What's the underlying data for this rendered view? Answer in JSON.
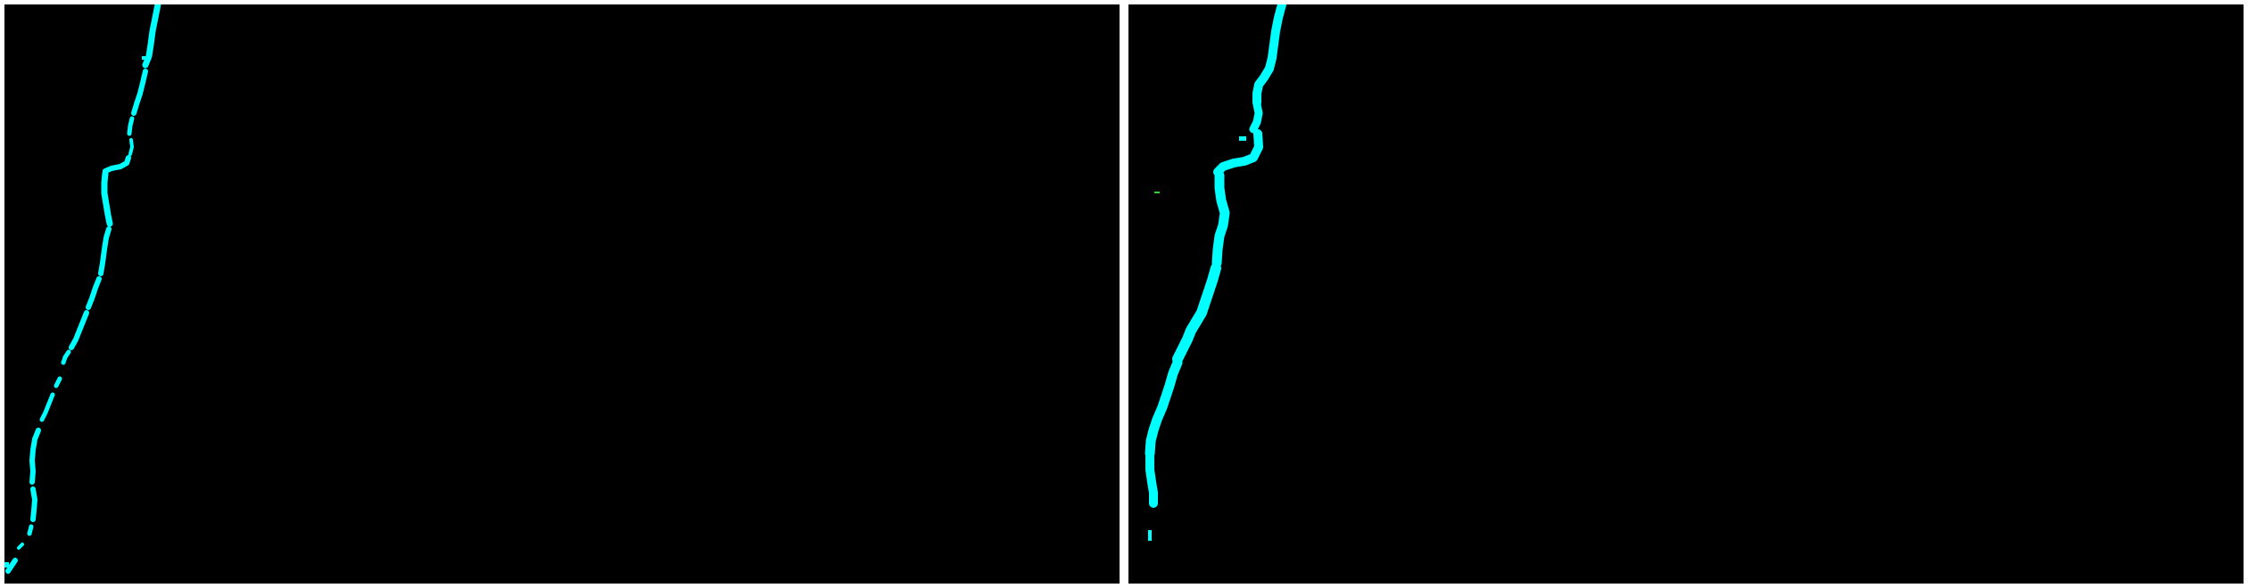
{
  "figure": {
    "background": "#ffffff",
    "panels": [
      {
        "id": "left",
        "description_color": "#00ffff",
        "style": "dotted-fragmented"
      },
      {
        "id": "right",
        "description_color": "#00ffff",
        "style": "continuous-thick"
      }
    ],
    "colors": {
      "panel_background": "#000000",
      "crack_primary": "#00ffff",
      "crack_secondary": "#2ab0a6",
      "speck": "#2fd32f"
    }
  }
}
